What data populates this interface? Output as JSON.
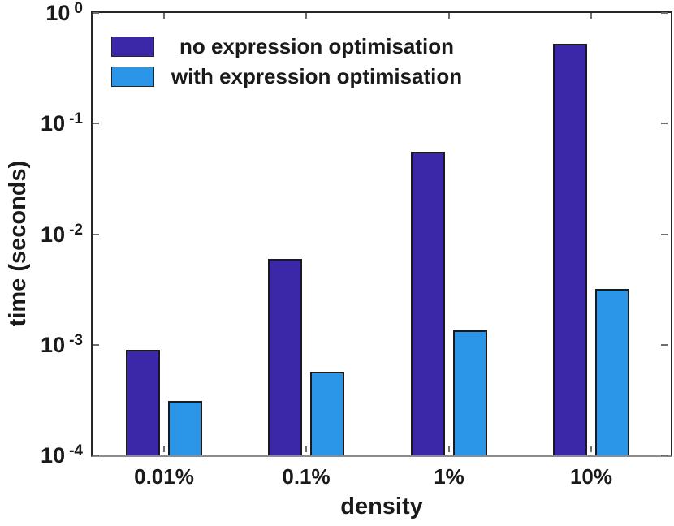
{
  "chart_data": {
    "type": "bar",
    "title": "",
    "categories": [
      "0.01%",
      "0.1%",
      "1%",
      "10%"
    ],
    "series": [
      {
        "name": "no expression optimisation",
        "color": "#3B28A8",
        "values": [
          0.0009,
          0.006,
          0.056,
          0.53
        ]
      },
      {
        "name": "with expression optimisation",
        "color": "#2B95E8",
        "values": [
          0.00031,
          0.00057,
          0.00135,
          0.0032
        ]
      }
    ],
    "xlabel": "density",
    "ylabel": "time (seconds)",
    "yscale": "log",
    "ylim": [
      0.0001,
      1
    ],
    "y_tick_base": "10",
    "y_tick_exponents": [
      "0",
      "-1",
      "-2",
      "-3",
      "-4"
    ],
    "legend_position": "top-left-inside",
    "grid": false,
    "bar_edge_color": "#1a1a1a",
    "axis_color": "#262626",
    "baseline_color": "#8c8c8c"
  }
}
